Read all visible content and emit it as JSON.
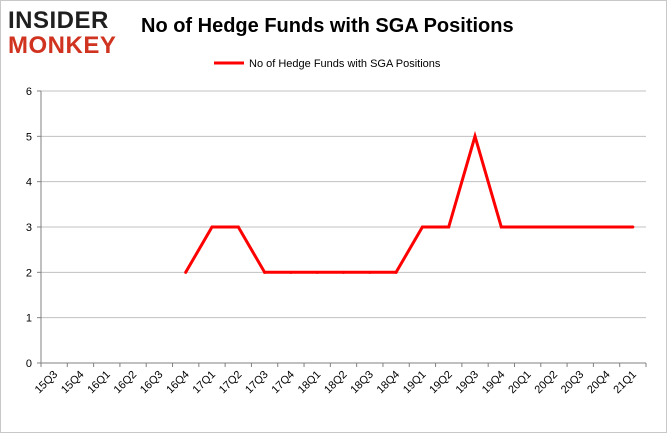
{
  "logo": {
    "line1": "INSIDER",
    "line2": "MONKEY"
  },
  "chart_data": {
    "type": "line",
    "title": "No of Hedge Funds with SGA Positions",
    "xlabel": "",
    "ylabel": "",
    "ylim": [
      0,
      6
    ],
    "yticks": [
      0,
      1,
      2,
      3,
      4,
      5,
      6
    ],
    "grid": "horizontal",
    "legend_position": "top",
    "categories": [
      "15Q3",
      "15Q4",
      "16Q1",
      "16Q2",
      "16Q3",
      "16Q4",
      "17Q1",
      "17Q2",
      "17Q3",
      "17Q4",
      "18Q1",
      "18Q2",
      "18Q3",
      "18Q4",
      "19Q1",
      "19Q2",
      "19Q3",
      "19Q4",
      "20Q1",
      "20Q2",
      "20Q3",
      "20Q4",
      "21Q1"
    ],
    "series": [
      {
        "name": "No of Hedge Funds with SGA Positions",
        "color": "#ff0000",
        "values": [
          null,
          null,
          null,
          null,
          null,
          2,
          3,
          3,
          2,
          2,
          2,
          2,
          2,
          2,
          3,
          3,
          5,
          3,
          3,
          3,
          3,
          3,
          3
        ]
      }
    ]
  }
}
